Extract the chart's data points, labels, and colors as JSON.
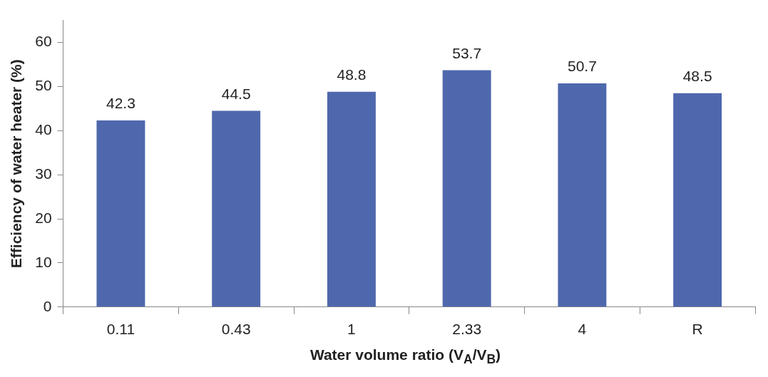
{
  "chart_data": {
    "type": "bar",
    "xlabel": "Water volume ratio (V$_{A}$/V$_{B}$)",
    "ylabel": "Efficiency of water heater (%)",
    "categories": [
      "0.11",
      "0.43",
      "1",
      "2.33",
      "4",
      "R"
    ],
    "values": [
      42.3,
      44.5,
      48.8,
      53.7,
      50.7,
      48.5
    ],
    "color": "#4f68ad",
    "ylim": [
      0,
      65
    ],
    "yticks": [
      0,
      10,
      20,
      30,
      40,
      50,
      60
    ],
    "data_labels": true
  }
}
